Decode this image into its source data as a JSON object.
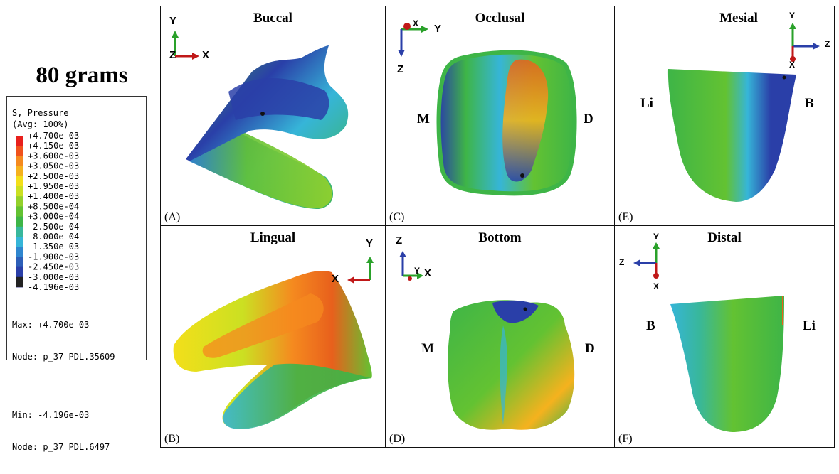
{
  "title": "80 grams",
  "legend": {
    "quantity": "S, Pressure",
    "averaging": "(Avg: 100%)",
    "entries": [
      {
        "value": "+4.700e-03",
        "color": "#e8201c"
      },
      {
        "value": "+4.150e-03",
        "color": "#f0521c"
      },
      {
        "value": "+3.600e-03",
        "color": "#f58a1f"
      },
      {
        "value": "+3.050e-03",
        "color": "#f5b21e"
      },
      {
        "value": "+2.500e-03",
        "color": "#f3df1a"
      },
      {
        "value": "+1.950e-03",
        "color": "#cbe022"
      },
      {
        "value": "+1.400e-03",
        "color": "#94d12b"
      },
      {
        "value": "+8.500e-04",
        "color": "#63c232"
      },
      {
        "value": "+3.000e-04",
        "color": "#3eb547"
      },
      {
        "value": "-2.500e-04",
        "color": "#38b79c"
      },
      {
        "value": "-8.000e-04",
        "color": "#36b5d8"
      },
      {
        "value": "-1.350e-03",
        "color": "#2f86cf"
      },
      {
        "value": "-1.900e-03",
        "color": "#2d5fb8"
      },
      {
        "value": "-2.450e-03",
        "color": "#2a3fa8"
      },
      {
        "value": "-3.000e-03",
        "color": "#22247f"
      },
      {
        "value": "-4.196e-03",
        "color": "#222222"
      }
    ],
    "max_label": "Max: +4.700e-03",
    "max_node": "Node: p_37 PDL.35609",
    "min_label": "Min: -4.196e-03",
    "min_node": "Node: p_37 PDL.6497"
  },
  "panels": {
    "A": {
      "title": "Buccal",
      "label": "(A)",
      "axes": {
        "vertical": "Y",
        "horizontal": "X",
        "out": "Z"
      }
    },
    "B": {
      "title": "Lingual",
      "label": "(B)",
      "axes": {
        "vertical": "Y",
        "horizontal": "X"
      }
    },
    "C": {
      "title": "Occlusal",
      "label": "(C)",
      "left": "M",
      "right": "D",
      "axes": {
        "vertical": "Z",
        "horizontal": "Y",
        "out": "X"
      }
    },
    "D": {
      "title": "Bottom",
      "label": "(D)",
      "left": "M",
      "right": "D",
      "axes": {
        "vertical": "Z",
        "horizontal": "Y",
        "extra": "X"
      }
    },
    "E": {
      "title": "Mesial",
      "label": "(E)",
      "left": "Li",
      "right": "B",
      "axes": {
        "vertical": "Y",
        "horizontal": "Z",
        "down": "X"
      }
    },
    "F": {
      "title": "Distal",
      "label": "(F)",
      "left": "B",
      "right": "Li",
      "axes": {
        "vertical": "Y",
        "horizontal": "Z",
        "down": "X"
      }
    }
  }
}
